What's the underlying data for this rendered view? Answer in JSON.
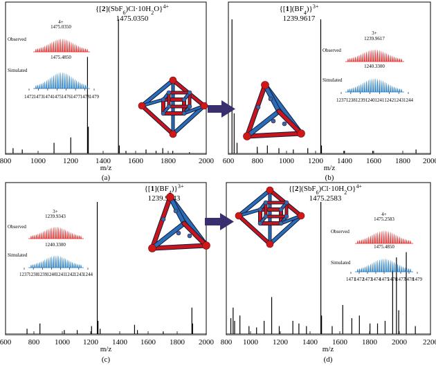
{
  "charts": [
    {
      "id": "a",
      "formula": {
        "parts": [
          "{[",
          "2",
          "](SbF",
          "6",
          ")Cl·10H",
          "2",
          "O}",
          "4+"
        ]
      },
      "mz_label": "1475.0350",
      "xlim": [
        800,
        2000
      ],
      "x_ticks": [
        "800",
        "1000",
        "1200",
        "1400",
        "1600",
        "1800",
        "2000"
      ],
      "xlabel": "m/z",
      "panel_label": "(a)",
      "main_peaks": [
        [
          845,
          4
        ],
        [
          900,
          3
        ],
        [
          1090,
          8
        ],
        [
          1190,
          12
        ],
        [
          1290,
          72
        ],
        [
          1295,
          20
        ],
        [
          1475.035,
          100
        ],
        [
          1480,
          6
        ],
        [
          1520,
          2
        ],
        [
          1640,
          3
        ],
        [
          1700,
          2
        ],
        [
          1740,
          4
        ],
        [
          1800,
          2
        ],
        [
          1900,
          1
        ]
      ],
      "inset": {
        "observed_label": "Observed",
        "simulated_label": "Simulated",
        "charge": "4+",
        "observed_mz": "1475.0350",
        "simulated_mz": "1475.4850",
        "ticks": [
          "1472",
          "1473",
          "1474",
          "1475",
          "1476",
          "1477",
          "1478",
          "1479"
        ]
      }
    },
    {
      "id": "b",
      "formula": {
        "parts": [
          "{[",
          "1",
          "](BF",
          "4",
          ")}",
          "3+"
        ]
      },
      "mz_label": "1239.9617",
      "xlim": [
        600,
        2000
      ],
      "x_ticks": [
        "600",
        "800",
        "1000",
        "1200",
        "1400",
        "1600",
        "1800",
        "2000"
      ],
      "xlabel": "m/z",
      "panel_label": "(b)",
      "main_peaks": [
        [
          625,
          100
        ],
        [
          640,
          30
        ],
        [
          660,
          8
        ],
        [
          800,
          5
        ],
        [
          870,
          6
        ],
        [
          950,
          4
        ],
        [
          1050,
          3
        ],
        [
          1150,
          4
        ],
        [
          1239.96,
          100
        ],
        [
          1245,
          6
        ],
        [
          1400,
          2
        ],
        [
          1600,
          2
        ],
        [
          1900,
          3
        ]
      ],
      "inset": {
        "observed_label": "Observed",
        "simulated_label": "Simulated",
        "charge": "3+",
        "observed_mz": "1239.9617",
        "simulated_mz": "1240.3300",
        "ticks": [
          "1237",
          "1238",
          "1239",
          "1240",
          "1241",
          "1242",
          "1243",
          "1244"
        ]
      }
    },
    {
      "id": "c",
      "formula": {
        "parts": [
          "{[",
          "1",
          "](BF",
          "4",
          ")}",
          "3+"
        ]
      },
      "mz_label": "1239.9343",
      "xlim": [
        600,
        2000
      ],
      "x_ticks": [
        "600",
        "800",
        "1000",
        "1200",
        "1400",
        "1600",
        "1800",
        "2000"
      ],
      "xlabel": "m/z",
      "panel_label": "(c)",
      "main_peaks": [
        [
          750,
          4
        ],
        [
          840,
          8
        ],
        [
          1010,
          3
        ],
        [
          1100,
          3
        ],
        [
          1200,
          6
        ],
        [
          1239.93,
          100
        ],
        [
          1245,
          10
        ],
        [
          1260,
          4
        ],
        [
          1500,
          7
        ],
        [
          1520,
          3
        ],
        [
          1700,
          2
        ],
        [
          1900,
          20
        ],
        [
          1905,
          8
        ]
      ],
      "inset": {
        "observed_label": "Observed",
        "simulated_label": "Simulated",
        "charge": "3+",
        "observed_mz": "1239.9343",
        "simulated_mz": "1240.3300",
        "ticks": [
          "1237",
          "1238",
          "1239",
          "1240",
          "1241",
          "1242",
          "1243",
          "1244"
        ]
      }
    },
    {
      "id": "d",
      "formula": {
        "parts": [
          "{[",
          "2",
          "](SbF",
          "6",
          ")Cl·10H",
          "2",
          "O}",
          "4+"
        ]
      },
      "mz_label": "1475.2583",
      "xlim": [
        850,
        2200
      ],
      "x_ticks": [
        "800",
        "1000",
        "1200",
        "1400",
        "1600",
        "1800",
        "2000",
        "2200"
      ],
      "xlabel": "m/z",
      "panel_label": "(d)",
      "main_peaks": [
        [
          880,
          12
        ],
        [
          895,
          20
        ],
        [
          905,
          10
        ],
        [
          940,
          14
        ],
        [
          1000,
          6
        ],
        [
          1050,
          5
        ],
        [
          1100,
          10
        ],
        [
          1150,
          28
        ],
        [
          1200,
          6
        ],
        [
          1290,
          10
        ],
        [
          1330,
          8
        ],
        [
          1380,
          6
        ],
        [
          1475.26,
          100
        ],
        [
          1480,
          14
        ],
        [
          1550,
          6
        ],
        [
          1620,
          22
        ],
        [
          1680,
          12
        ],
        [
          1730,
          14
        ],
        [
          1800,
          8
        ],
        [
          1850,
          8
        ],
        [
          1900,
          10
        ],
        [
          1950,
          48
        ],
        [
          1975,
          58
        ],
        [
          1990,
          18
        ],
        [
          2040,
          62
        ],
        [
          2100,
          6
        ]
      ],
      "inset": {
        "observed_label": "Observed",
        "simulated_label": "Simulated",
        "charge": "4+",
        "observed_mz": "1475.2583",
        "simulated_mz": "1475.4850",
        "ticks": [
          "1471",
          "1472",
          "1473",
          "1474",
          "1475",
          "1476",
          "1477",
          "1478",
          "1479"
        ]
      }
    }
  ],
  "colors": {
    "observed": "#e32222",
    "simulated": "#1c77c3",
    "arrow": "#3a2f6e",
    "node": "#d01818",
    "rod_red": "#c8141c",
    "rod_blue": "#2a6cb6"
  }
}
